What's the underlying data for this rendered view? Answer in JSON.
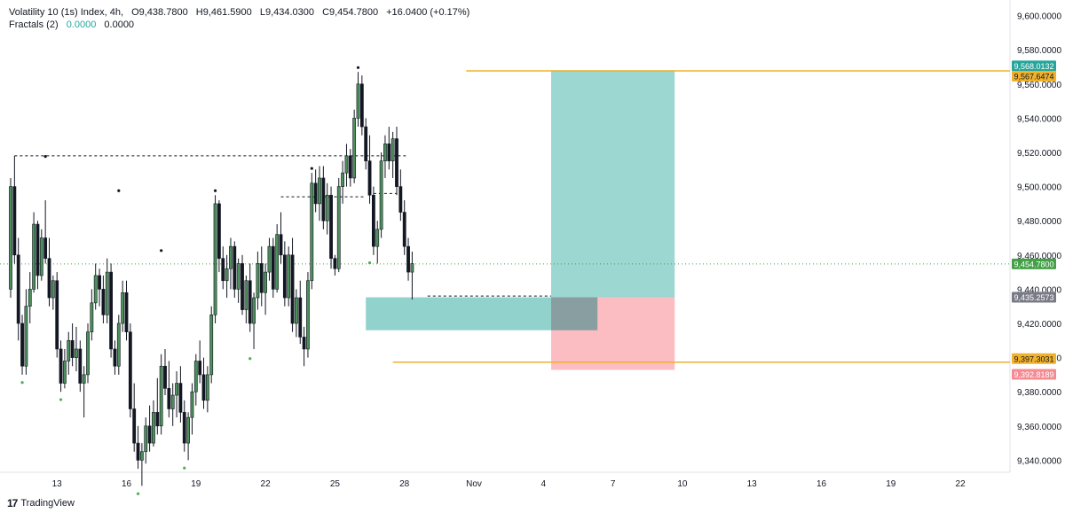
{
  "header": {
    "symbol": "Volatility 10 (1s) Index, 4h,",
    "ohlc": {
      "o": "O9,438.7800",
      "h": "H9,461.5900",
      "l": "L9,434.0300",
      "c": "C9,454.7800"
    },
    "change": "+16.0400 (+0.17%)",
    "indicator_name": "Fractals (2)",
    "indicator_v1": "0.0000",
    "indicator_v2": "0.0000"
  },
  "footer": {
    "brand": "TradingView"
  },
  "colors": {
    "bull": "#26a69a",
    "candle_bull_fill": "#4b8f5a",
    "candle_bear": "#131722",
    "target": "#26a69a",
    "stop": "#f7525f",
    "hline": "#f0b12c",
    "last_price": "#43a047",
    "entry": "#787b86"
  },
  "chart_data": {
    "type": "candlestick",
    "title": "",
    "xlabel": "",
    "ylabel": "",
    "ylim": [
      9330,
      9605
    ],
    "y_ticks": [
      "9,600.0000",
      "9,580.0000",
      "9,560.0000",
      "9,540.0000",
      "9,520.0000",
      "9,500.0000",
      "9,480.0000",
      "9,460.0000",
      "9,440.0000",
      "9,420.0000",
      "9,400.0000",
      "9,380.0000",
      "9,360.0000",
      "9,340.0000"
    ],
    "y_tick_values": [
      9600,
      9580,
      9560,
      9540,
      9520,
      9500,
      9480,
      9460,
      9440,
      9420,
      9400,
      9380,
      9360,
      9340
    ],
    "x_tick_labels": [
      "13",
      "16",
      "19",
      "22",
      "25",
      "28",
      "Nov",
      "4",
      "7",
      "10",
      "13",
      "16",
      "19",
      "22"
    ],
    "x_tick_bars": [
      12,
      30,
      48,
      66,
      84,
      102,
      120,
      138,
      156,
      174,
      192,
      210,
      228,
      246
    ],
    "price_labels": [
      {
        "value": 9568.0132,
        "text": "9,568.0132",
        "kind": "target"
      },
      {
        "value": 9567.6474,
        "text": "9,567.6474",
        "kind": "hline"
      },
      {
        "value": 9454.78,
        "text": "9,454.7800",
        "kind": "last"
      },
      {
        "value": 9435.2573,
        "text": "9,435.2573",
        "kind": "entry"
      },
      {
        "value": 9397.3031,
        "text": "9,397.3031",
        "kind": "hline"
      },
      {
        "value": 9392.8189,
        "text": "9,392.8189",
        "kind": "stop"
      }
    ],
    "horizontal_lines": [
      9567.6474,
      9397.3031
    ],
    "position": {
      "entry": 9435.2573,
      "target": 9568.0132,
      "stop": 9392.8189,
      "start_bar": 140,
      "end_bar": 172
    },
    "candles": [
      [
        9440,
        9505,
        9435,
        9500
      ],
      [
        9500,
        9518,
        9455,
        9460
      ],
      [
        9460,
        9470,
        9410,
        9420
      ],
      [
        9420,
        9425,
        9390,
        9395
      ],
      [
        9395,
        9440,
        9390,
        9430
      ],
      [
        9430,
        9450,
        9420,
        9440
      ],
      [
        9440,
        9485,
        9438,
        9478
      ],
      [
        9478,
        9480,
        9440,
        9448
      ],
      [
        9448,
        9475,
        9445,
        9470
      ],
      [
        9470,
        9492,
        9455,
        9458
      ],
      [
        9458,
        9470,
        9430,
        9435
      ],
      [
        9435,
        9448,
        9428,
        9445
      ],
      [
        9445,
        9450,
        9400,
        9405
      ],
      [
        9405,
        9410,
        9380,
        9385
      ],
      [
        9385,
        9405,
        9382,
        9398
      ],
      [
        9398,
        9415,
        9390,
        9410
      ],
      [
        9410,
        9420,
        9395,
        9400
      ],
      [
        9400,
        9418,
        9392,
        9405
      ],
      [
        9405,
        9410,
        9380,
        9385
      ],
      [
        9385,
        9395,
        9365,
        9390
      ],
      [
        9390,
        9420,
        9385,
        9415
      ],
      [
        9415,
        9440,
        9410,
        9432
      ],
      [
        9432,
        9455,
        9428,
        9448
      ],
      [
        9448,
        9452,
        9430,
        9440
      ],
      [
        9440,
        9448,
        9420,
        9425
      ],
      [
        9425,
        9458,
        9420,
        9450
      ],
      [
        9450,
        9455,
        9400,
        9405
      ],
      [
        9405,
        9410,
        9390,
        9395
      ],
      [
        9395,
        9425,
        9390,
        9420
      ],
      [
        9420,
        9445,
        9415,
        9438
      ],
      [
        9438,
        9445,
        9410,
        9415
      ],
      [
        9415,
        9420,
        9365,
        9370
      ],
      [
        9370,
        9385,
        9345,
        9350
      ],
      [
        9350,
        9360,
        9335,
        9340
      ],
      [
        9340,
        9350,
        9325,
        9345
      ],
      [
        9345,
        9365,
        9338,
        9360
      ],
      [
        9360,
        9372,
        9345,
        9350
      ],
      [
        9350,
        9375,
        9348,
        9368
      ],
      [
        9368,
        9388,
        9355,
        9360
      ],
      [
        9360,
        9402,
        9355,
        9395
      ],
      [
        9395,
        9405,
        9378,
        9382
      ],
      [
        9382,
        9398,
        9365,
        9370
      ],
      [
        9370,
        9385,
        9360,
        9378
      ],
      [
        9378,
        9392,
        9365,
        9385
      ],
      [
        9385,
        9395,
        9362,
        9368
      ],
      [
        9368,
        9375,
        9345,
        9350
      ],
      [
        9350,
        9368,
        9340,
        9365
      ],
      [
        9365,
        9385,
        9355,
        9380
      ],
      [
        9380,
        9402,
        9372,
        9398
      ],
      [
        9398,
        9410,
        9385,
        9390
      ],
      [
        9390,
        9400,
        9370,
        9375
      ],
      [
        9375,
        9395,
        9368,
        9390
      ],
      [
        9390,
        9430,
        9385,
        9425
      ],
      [
        9425,
        9495,
        9420,
        9490
      ],
      [
        9490,
        9492,
        9450,
        9458
      ],
      [
        9458,
        9465,
        9440,
        9445
      ],
      [
        9445,
        9460,
        9435,
        9452
      ],
      [
        9452,
        9470,
        9440,
        9465
      ],
      [
        9465,
        9468,
        9435,
        9440
      ],
      [
        9440,
        9458,
        9432,
        9455
      ],
      [
        9455,
        9460,
        9425,
        9428
      ],
      [
        9428,
        9448,
        9420,
        9445
      ],
      [
        9445,
        9455,
        9415,
        9420
      ],
      [
        9420,
        9438,
        9405,
        9435
      ],
      [
        9435,
        9462,
        9428,
        9455
      ],
      [
        9455,
        9465,
        9430,
        9438
      ],
      [
        9438,
        9455,
        9425,
        9450
      ],
      [
        9450,
        9470,
        9445,
        9465
      ],
      [
        9465,
        9470,
        9435,
        9440
      ],
      [
        9440,
        9478,
        9438,
        9472
      ],
      [
        9472,
        9485,
        9455,
        9460
      ],
      [
        9460,
        9468,
        9430,
        9435
      ],
      [
        9435,
        9465,
        9430,
        9460
      ],
      [
        9460,
        9470,
        9415,
        9420
      ],
      [
        9420,
        9440,
        9412,
        9435
      ],
      [
        9435,
        9445,
        9408,
        9412
      ],
      [
        9412,
        9418,
        9395,
        9405
      ],
      [
        9405,
        9450,
        9400,
        9445
      ],
      [
        9445,
        9508,
        9440,
        9502
      ],
      [
        9502,
        9510,
        9485,
        9490
      ],
      [
        9490,
        9512,
        9480,
        9505
      ],
      [
        9505,
        9512,
        9475,
        9480
      ],
      [
        9480,
        9502,
        9472,
        9495
      ],
      [
        9495,
        9500,
        9452,
        9458
      ],
      [
        9458,
        9460,
        9448,
        9452
      ],
      [
        9452,
        9505,
        9450,
        9500
      ],
      [
        9500,
        9515,
        9490,
        9508
      ],
      [
        9508,
        9525,
        9500,
        9518
      ],
      [
        9518,
        9522,
        9500,
        9505
      ],
      [
        9505,
        9545,
        9502,
        9540
      ],
      [
        9540,
        9567,
        9535,
        9560
      ],
      [
        9560,
        9565,
        9530,
        9535
      ],
      [
        9535,
        9540,
        9510,
        9515
      ],
      [
        9515,
        9530,
        9490,
        9495
      ],
      [
        9495,
        9500,
        9460,
        9465
      ],
      [
        9465,
        9480,
        9455,
        9475
      ],
      [
        9475,
        9520,
        9470,
        9515
      ],
      [
        9515,
        9530,
        9505,
        9525
      ],
      [
        9525,
        9535,
        9510,
        9515
      ],
      [
        9515,
        9532,
        9505,
        9528
      ],
      [
        9528,
        9535,
        9495,
        9500
      ],
      [
        9500,
        9510,
        9480,
        9485
      ],
      [
        9485,
        9492,
        9460,
        9465
      ],
      [
        9465,
        9470,
        9445,
        9450
      ],
      [
        9450,
        9462,
        9434,
        9455
      ]
    ],
    "fractals_up": [
      [
        9,
        9515
      ],
      [
        28,
        9495
      ],
      [
        39,
        9460
      ],
      [
        53,
        9495
      ],
      [
        78,
        9508
      ],
      [
        90,
        9567
      ]
    ],
    "fractals_down": [
      [
        3,
        9388
      ],
      [
        13,
        9378
      ],
      [
        33,
        9323
      ],
      [
        45,
        9338
      ],
      [
        62,
        9402
      ],
      [
        93,
        9458
      ]
    ]
  }
}
